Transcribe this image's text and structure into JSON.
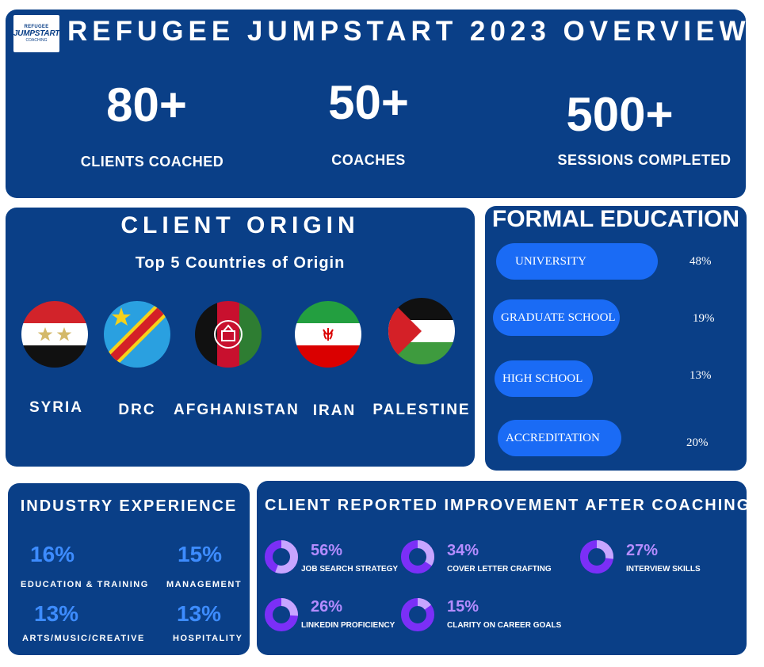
{
  "header": {
    "logo": {
      "line1": "REFUGEE",
      "line2": "JUMPSTART",
      "line3": "COACHING"
    },
    "title": "REFUGEE JUMPSTART 2023 OVERVIEW",
    "stats": [
      {
        "value": "80+",
        "label": "CLIENTS COACHED"
      },
      {
        "value": "50+",
        "label": "COACHES"
      },
      {
        "value": "500+",
        "label": "SESSIONS COMPLETED"
      }
    ]
  },
  "origin": {
    "title": "CLIENT ORIGIN",
    "subtitle": "Top 5 Countries of Origin",
    "countries": [
      "SYRIA",
      "DRC",
      "AFGHANISTAN",
      "IRAN",
      "PALESTINE"
    ]
  },
  "education": {
    "title": "FORMAL EDUCATION",
    "items": [
      {
        "label": "UNIVERSITY",
        "percent": "48%"
      },
      {
        "label": "GRADUATE SCHOOL",
        "percent": "19%"
      },
      {
        "label": "HIGH SCHOOL",
        "percent": "13%"
      },
      {
        "label": "ACCREDITATION",
        "percent": "20%"
      }
    ]
  },
  "industry": {
    "title": "INDUSTRY EXPERIENCE",
    "items": [
      {
        "percent": "16%",
        "label": "EDUCATION & TRAINING"
      },
      {
        "percent": "15%",
        "label": "MANAGEMENT"
      },
      {
        "percent": "13%",
        "label": "ARTS/MUSIC/CREATIVE"
      },
      {
        "percent": "13%",
        "label": "HOSPITALITY"
      }
    ]
  },
  "improvement": {
    "title": "CLIENT REPORTED IMPROVEMENT AFTER COACHING",
    "items": [
      {
        "percent": "56%",
        "label": "JOB SEARCH STRATEGY",
        "value": 56
      },
      {
        "percent": "34%",
        "label": "COVER LETTER CRAFTING",
        "value": 34
      },
      {
        "percent": "27%",
        "label": "INTERVIEW SKILLS",
        "value": 27
      },
      {
        "percent": "26%",
        "label": "LINKEDIN PROFICIENCY",
        "value": 26
      },
      {
        "percent": "15%",
        "label": "CLARITY ON CAREER GOALS",
        "value": 15
      }
    ]
  },
  "colors": {
    "panel": "#0a3f87",
    "pill": "#1a6bf5",
    "industry_percent": "#3d8cff",
    "donut_fill": "#c7a5ff",
    "donut_track": "#7b2ff7"
  }
}
